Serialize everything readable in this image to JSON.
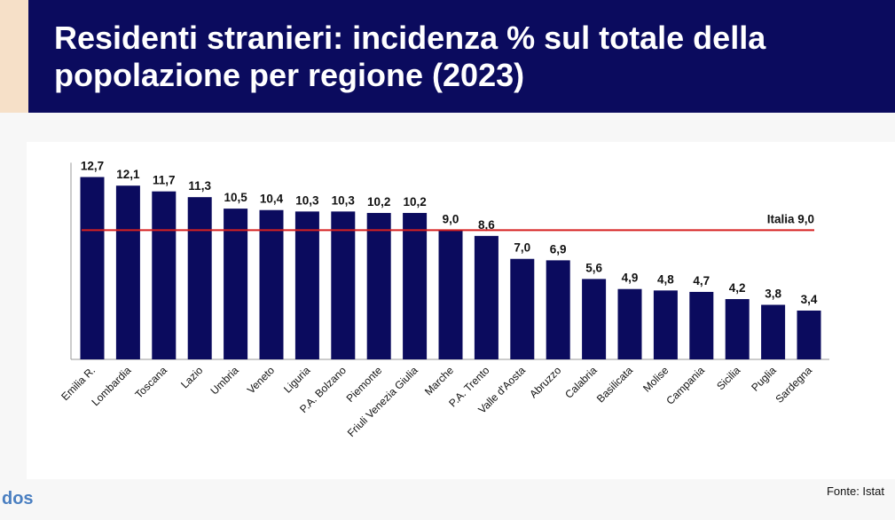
{
  "header": {
    "title": "Residenti stranieri: incidenza % sul totale della popolazione per regione (2023)"
  },
  "footer": {
    "source": "Fonte: Istat",
    "logo_text": "dos"
  },
  "colors": {
    "header_bg": "#0b0b5e",
    "bar": "#0b0b5e",
    "reference_line": "#d62020"
  },
  "chart_data": {
    "type": "bar",
    "categories": [
      "Emilia R.",
      "Lombardia",
      "Toscana",
      "Lazio",
      "Umbria",
      "Veneto",
      "Liguria",
      "P.A. Bolzano",
      "Piemonte",
      "Friuli Venezia Giulia",
      "Marche",
      "P.A. Trento",
      "Valle d'Aosta",
      "Abruzzo",
      "Calabria",
      "Basilicata",
      "Molise",
      "Campania",
      "Sicilia",
      "Puglia",
      "Sardegna"
    ],
    "values": [
      12.7,
      12.1,
      11.7,
      11.3,
      10.5,
      10.4,
      10.3,
      10.3,
      10.2,
      10.2,
      9.0,
      8.6,
      7.0,
      6.9,
      5.6,
      4.9,
      4.8,
      4.7,
      4.2,
      3.8,
      3.4
    ],
    "value_labels": [
      "12,7",
      "12,1",
      "11,7",
      "11,3",
      "10,5",
      "10,4",
      "10,3",
      "10,3",
      "10,2",
      "10,2",
      "9,0",
      "8,6",
      "7,0",
      "6,9",
      "5,6",
      "4,9",
      "4,8",
      "4,7",
      "4,2",
      "3,8",
      "3,4"
    ],
    "reference": {
      "label": "Italia 9,0",
      "value": 9.0
    },
    "ylim": [
      0,
      13.7
    ],
    "xlabel": "",
    "ylabel": "",
    "grid": false,
    "legend": "none"
  }
}
